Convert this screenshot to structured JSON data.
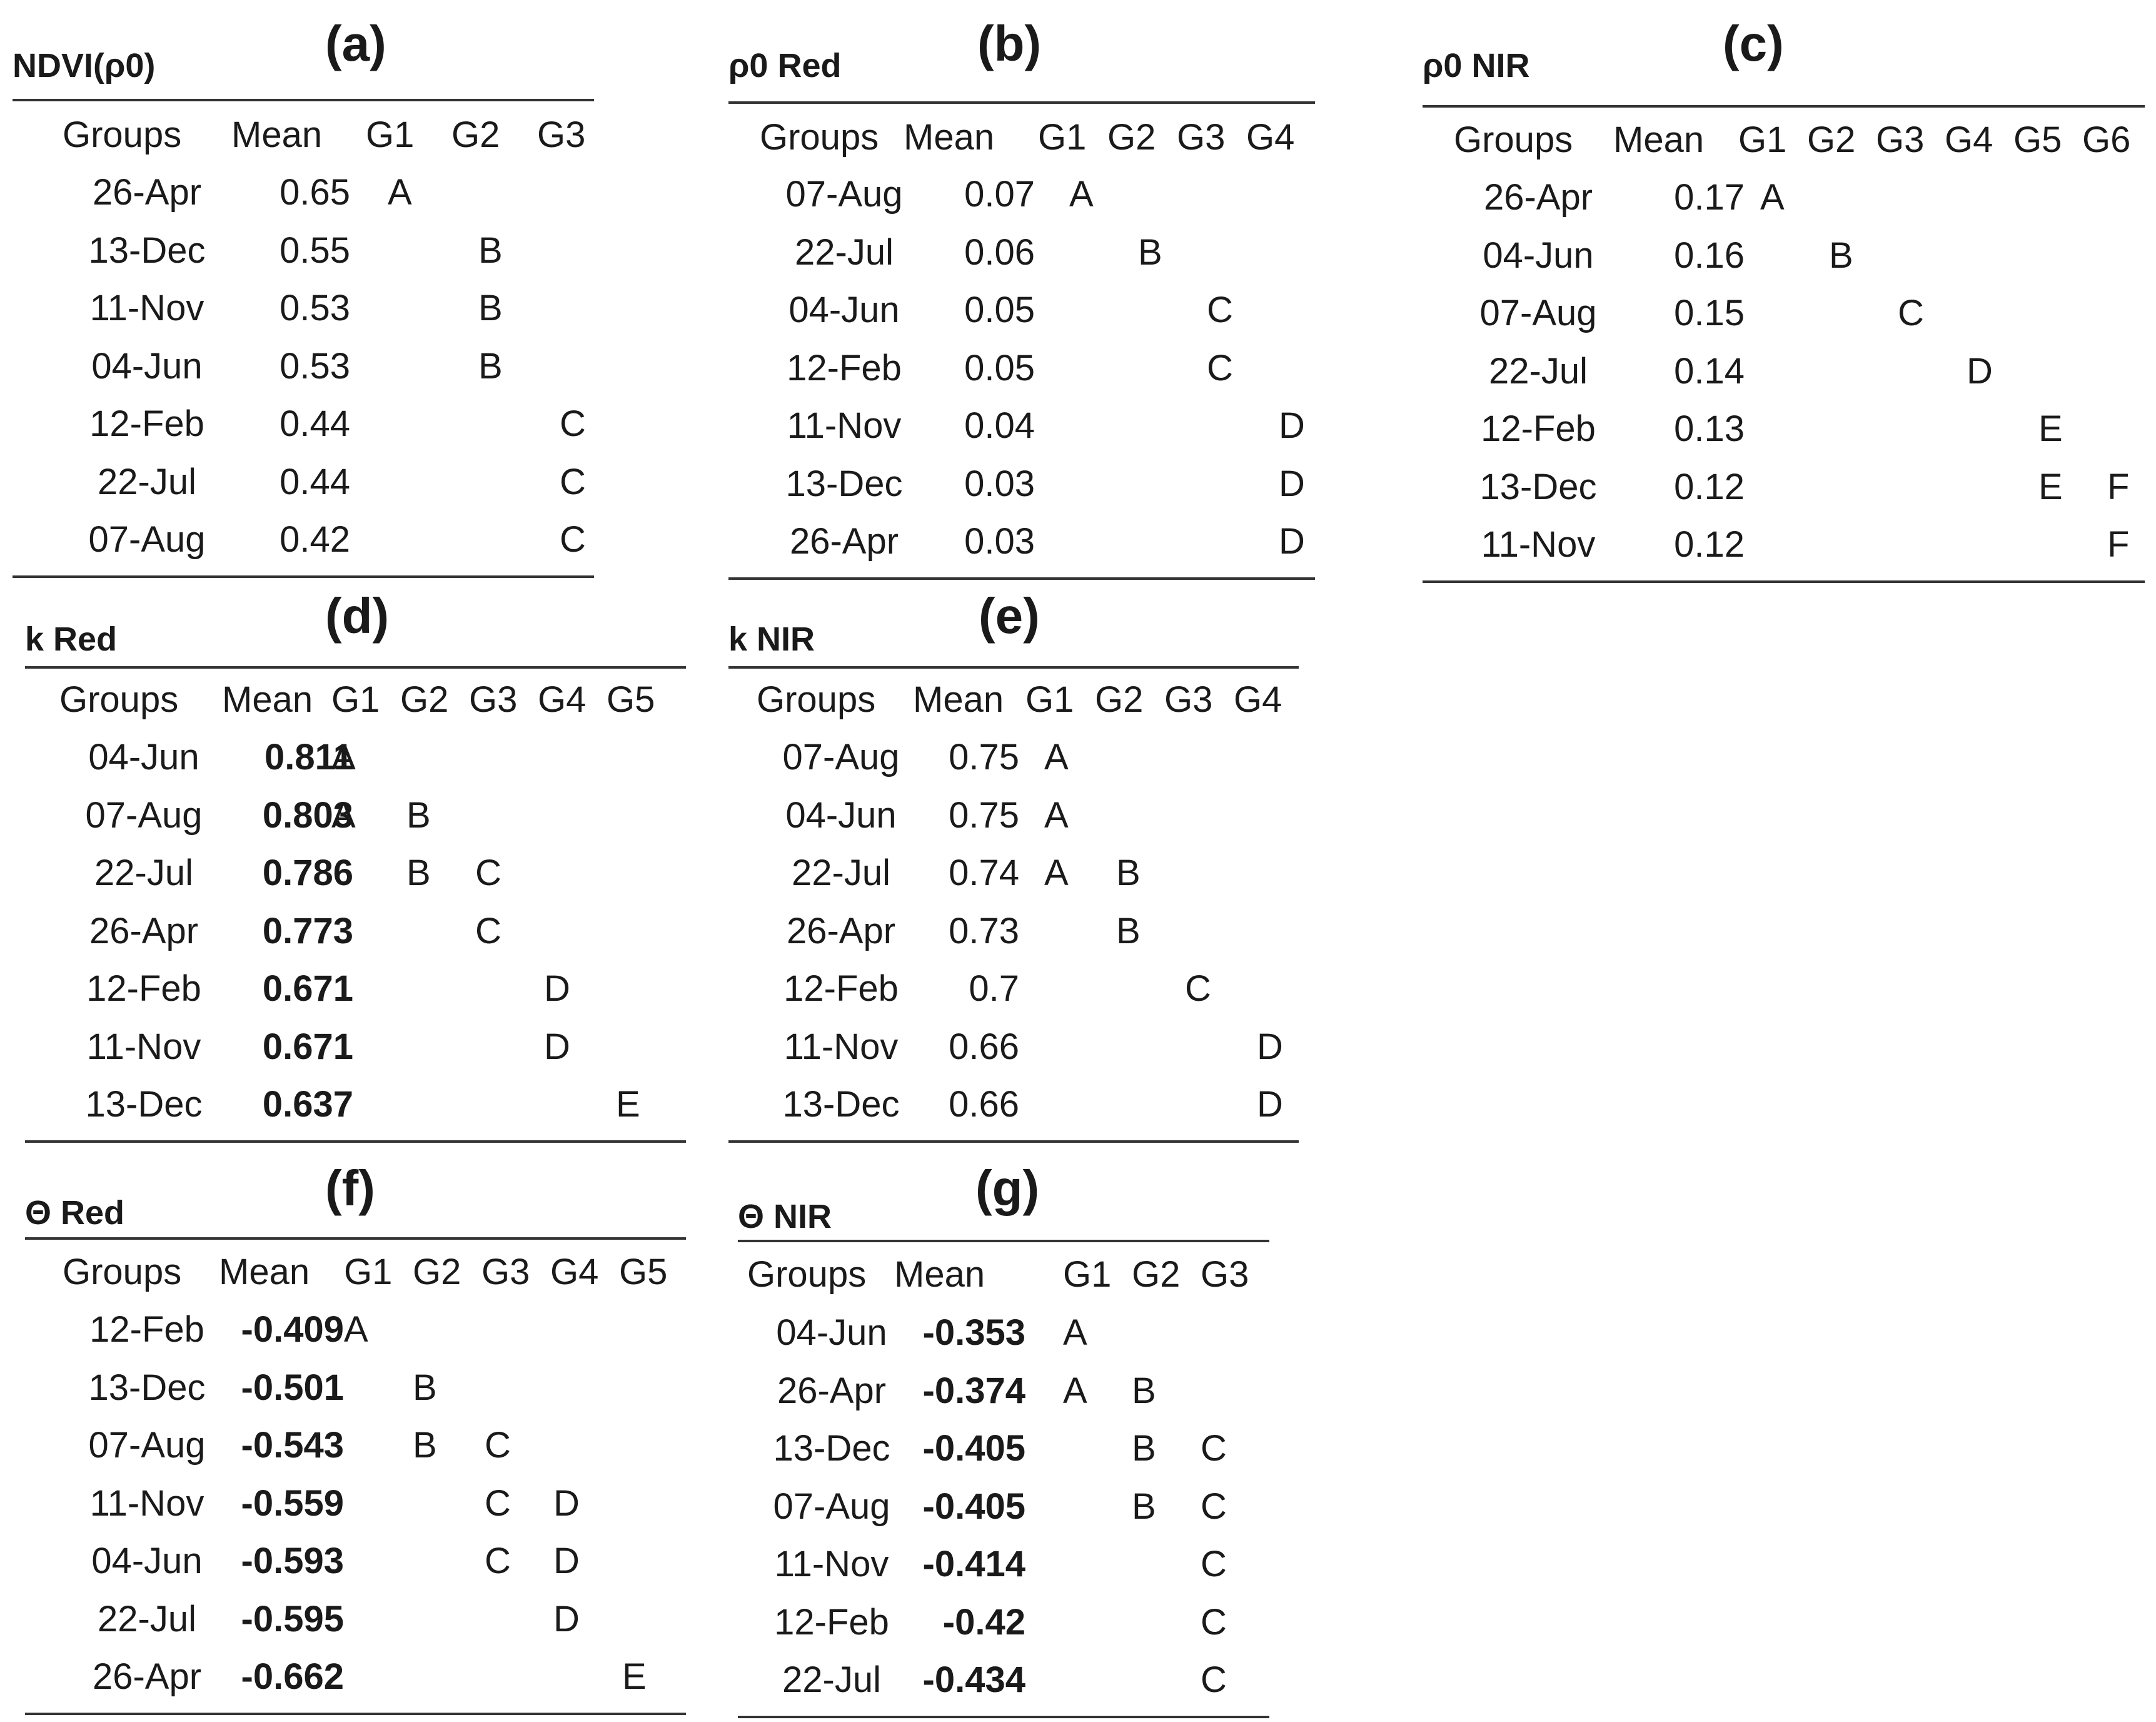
{
  "panels": [
    {
      "title": "(a)",
      "name": "NDVI(ρ0)",
      "boldMeans": false,
      "headers": [
        "Groups",
        "Mean",
        "G1",
        "G2",
        "G3"
      ],
      "rows": [
        {
          "group": "26-Apr",
          "mean": "0.65",
          "letters": [
            "A",
            "",
            ""
          ]
        },
        {
          "group": "13-Dec",
          "mean": "0.55",
          "letters": [
            "",
            "B",
            ""
          ]
        },
        {
          "group": "11-Nov",
          "mean": "0.53",
          "letters": [
            "",
            "B",
            ""
          ]
        },
        {
          "group": "04-Jun",
          "mean": "0.53",
          "letters": [
            "",
            "B",
            ""
          ]
        },
        {
          "group": "12-Feb",
          "mean": "0.44",
          "letters": [
            "",
            "",
            "C"
          ]
        },
        {
          "group": "22-Jul",
          "mean": "0.44",
          "letters": [
            "",
            "",
            "C"
          ]
        },
        {
          "group": "07-Aug",
          "mean": "0.42",
          "letters": [
            "",
            "",
            "C"
          ]
        }
      ]
    },
    {
      "title": "(b)",
      "name": "ρ0 Red",
      "boldMeans": false,
      "headers": [
        "Groups",
        "Mean",
        "G1",
        "G2",
        "G3",
        "G4"
      ],
      "rows": [
        {
          "group": "07-Aug",
          "mean": "0.07",
          "letters": [
            "A",
            "",
            "",
            ""
          ]
        },
        {
          "group": "22-Jul",
          "mean": "0.06",
          "letters": [
            "",
            "B",
            "",
            ""
          ]
        },
        {
          "group": "04-Jun",
          "mean": "0.05",
          "letters": [
            "",
            "",
            "C",
            ""
          ]
        },
        {
          "group": "12-Feb",
          "mean": "0.05",
          "letters": [
            "",
            "",
            "C",
            ""
          ]
        },
        {
          "group": "11-Nov",
          "mean": "0.04",
          "letters": [
            "",
            "",
            "",
            "D"
          ]
        },
        {
          "group": "13-Dec",
          "mean": "0.03",
          "letters": [
            "",
            "",
            "",
            "D"
          ]
        },
        {
          "group": "26-Apr",
          "mean": "0.03",
          "letters": [
            "",
            "",
            "",
            "D"
          ]
        }
      ]
    },
    {
      "title": "(c)",
      "name": "ρ0 NIR",
      "boldMeans": false,
      "headers": [
        "Groups",
        "Mean",
        "G1",
        "G2",
        "G3",
        "G4",
        "G5",
        "G6"
      ],
      "rows": [
        {
          "group": "26-Apr",
          "mean": "0.17",
          "letters": [
            "A",
            "",
            "",
            "",
            "",
            ""
          ]
        },
        {
          "group": "04-Jun",
          "mean": "0.16",
          "letters": [
            "",
            "B",
            "",
            "",
            "",
            ""
          ]
        },
        {
          "group": "07-Aug",
          "mean": "0.15",
          "letters": [
            "",
            "",
            "C",
            "",
            "",
            ""
          ]
        },
        {
          "group": "22-Jul",
          "mean": "0.14",
          "letters": [
            "",
            "",
            "",
            "D",
            "",
            ""
          ]
        },
        {
          "group": "12-Feb",
          "mean": "0.13",
          "letters": [
            "",
            "",
            "",
            "",
            "E",
            ""
          ]
        },
        {
          "group": "13-Dec",
          "mean": "0.12",
          "letters": [
            "",
            "",
            "",
            "",
            "E",
            "F"
          ]
        },
        {
          "group": "11-Nov",
          "mean": "0.12",
          "letters": [
            "",
            "",
            "",
            "",
            "",
            "F"
          ]
        }
      ]
    },
    {
      "title": "(d)",
      "name": "k Red",
      "boldMeans": true,
      "headers": [
        "Groups",
        "Mean",
        "G1",
        "G2",
        "G3",
        "G4",
        "G5"
      ],
      "rows": [
        {
          "group": "04-Jun",
          "mean": "0.811",
          "letters": [
            "A",
            "",
            "",
            "",
            ""
          ]
        },
        {
          "group": "07-Aug",
          "mean": "0.803",
          "letters": [
            "A",
            "B",
            "",
            "",
            ""
          ]
        },
        {
          "group": "22-Jul",
          "mean": "0.786",
          "letters": [
            "",
            "B",
            "C",
            "",
            ""
          ]
        },
        {
          "group": "26-Apr",
          "mean": "0.773",
          "letters": [
            "",
            "",
            "C",
            "",
            ""
          ]
        },
        {
          "group": "12-Feb",
          "mean": "0.671",
          "letters": [
            "",
            "",
            "",
            "D",
            ""
          ]
        },
        {
          "group": "11-Nov",
          "mean": "0.671",
          "letters": [
            "",
            "",
            "",
            "D",
            ""
          ]
        },
        {
          "group": "13-Dec",
          "mean": "0.637",
          "letters": [
            "",
            "",
            "",
            "",
            "E"
          ]
        }
      ]
    },
    {
      "title": "(e)",
      "name": "k NIR",
      "boldMeans": false,
      "headers": [
        "Groups",
        "Mean",
        "G1",
        "G2",
        "G3",
        "G4"
      ],
      "rows": [
        {
          "group": "07-Aug",
          "mean": "0.75",
          "letters": [
            "A",
            "",
            "",
            ""
          ]
        },
        {
          "group": "04-Jun",
          "mean": "0.75",
          "letters": [
            "A",
            "",
            "",
            ""
          ]
        },
        {
          "group": "22-Jul",
          "mean": "0.74",
          "letters": [
            "A",
            "B",
            "",
            ""
          ]
        },
        {
          "group": "26-Apr",
          "mean": "0.73",
          "letters": [
            "",
            "B",
            "",
            ""
          ]
        },
        {
          "group": "12-Feb",
          "mean": "0.7",
          "letters": [
            "",
            "",
            "C",
            ""
          ]
        },
        {
          "group": "11-Nov",
          "mean": "0.66",
          "letters": [
            "",
            "",
            "",
            "D"
          ]
        },
        {
          "group": "13-Dec",
          "mean": "0.66",
          "letters": [
            "",
            "",
            "",
            "D"
          ]
        }
      ]
    },
    {
      "title": "(f)",
      "name": "Θ Red",
      "boldMeans": true,
      "headers": [
        "Groups",
        "Mean",
        "G1",
        "G2",
        "G3",
        "G4",
        "G5"
      ],
      "rows": [
        {
          "group": "12-Feb",
          "mean": "-0.409",
          "letters": [
            "A",
            "",
            "",
            "",
            ""
          ]
        },
        {
          "group": "13-Dec",
          "mean": "-0.501",
          "letters": [
            "",
            "B",
            "",
            "",
            ""
          ]
        },
        {
          "group": "07-Aug",
          "mean": "-0.543",
          "letters": [
            "",
            "B",
            "C",
            "",
            ""
          ]
        },
        {
          "group": "11-Nov",
          "mean": "-0.559",
          "letters": [
            "",
            "",
            "C",
            "D",
            ""
          ]
        },
        {
          "group": "04-Jun",
          "mean": "-0.593",
          "letters": [
            "",
            "",
            "C",
            "D",
            ""
          ]
        },
        {
          "group": "22-Jul",
          "mean": "-0.595",
          "letters": [
            "",
            "",
            "",
            "D",
            ""
          ]
        },
        {
          "group": "26-Apr",
          "mean": "-0.662",
          "letters": [
            "",
            "",
            "",
            "",
            "E"
          ]
        }
      ]
    },
    {
      "title": "(g)",
      "name": "Θ NIR",
      "boldMeans": true,
      "headers": [
        "Groups",
        "Mean",
        "G1",
        "G2",
        "G3"
      ],
      "rows": [
        {
          "group": "04-Jun",
          "mean": "-0.353",
          "letters": [
            "A",
            "",
            ""
          ]
        },
        {
          "group": "26-Apr",
          "mean": "-0.374",
          "letters": [
            "A",
            "B",
            ""
          ]
        },
        {
          "group": "13-Dec",
          "mean": "-0.405",
          "letters": [
            "",
            "B",
            "C"
          ]
        },
        {
          "group": "07-Aug",
          "mean": "-0.405",
          "letters": [
            "",
            "B",
            "C"
          ]
        },
        {
          "group": "11-Nov",
          "mean": "-0.414",
          "letters": [
            "",
            "",
            "C"
          ]
        },
        {
          "group": "12-Feb",
          "mean": "-0.42",
          "letters": [
            "",
            "",
            "C"
          ]
        },
        {
          "group": "22-Jul",
          "mean": "-0.434",
          "letters": [
            "",
            "",
            "C"
          ]
        }
      ]
    }
  ]
}
